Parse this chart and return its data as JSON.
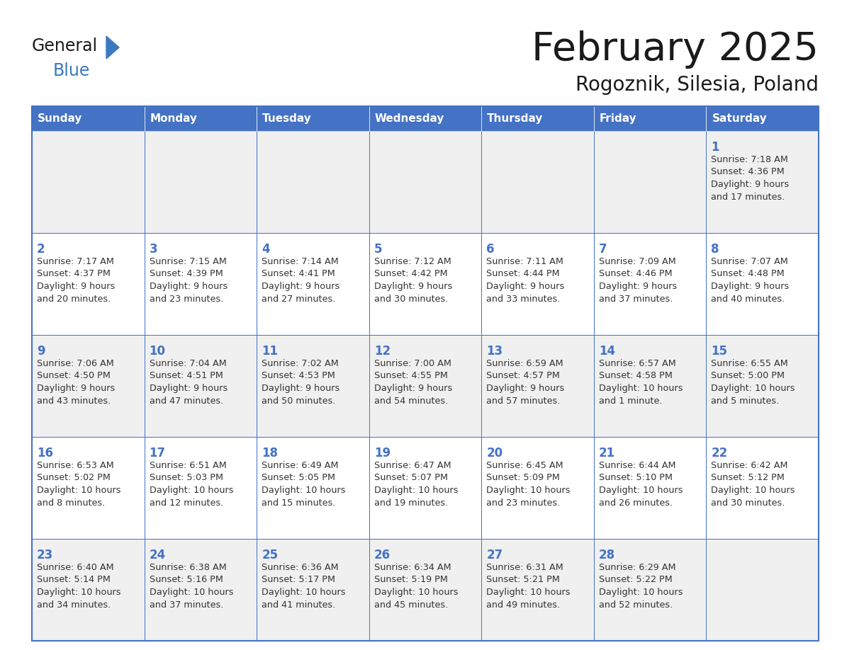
{
  "title": "February 2025",
  "subtitle": "Rogoznik, Silesia, Poland",
  "days_of_week": [
    "Sunday",
    "Monday",
    "Tuesday",
    "Wednesday",
    "Thursday",
    "Friday",
    "Saturday"
  ],
  "header_bg": "#4472C4",
  "header_text": "#FFFFFF",
  "cell_bg_even": "#F0F0F0",
  "cell_bg_odd": "#FFFFFF",
  "cell_border": "#4472C4",
  "title_color": "#1a1a1a",
  "subtitle_color": "#1a1a1a",
  "day_number_color": "#4472C4",
  "cell_text_color": "#333333",
  "logo_general_color": "#1a1a1a",
  "logo_blue_color": "#3a7abf",
  "calendar_data": {
    "1": {
      "sunrise": "7:18 AM",
      "sunset": "4:36 PM",
      "daylight_h": "9 hours",
      "daylight_m": "and 17 minutes."
    },
    "2": {
      "sunrise": "7:17 AM",
      "sunset": "4:37 PM",
      "daylight_h": "9 hours",
      "daylight_m": "and 20 minutes."
    },
    "3": {
      "sunrise": "7:15 AM",
      "sunset": "4:39 PM",
      "daylight_h": "9 hours",
      "daylight_m": "and 23 minutes."
    },
    "4": {
      "sunrise": "7:14 AM",
      "sunset": "4:41 PM",
      "daylight_h": "9 hours",
      "daylight_m": "and 27 minutes."
    },
    "5": {
      "sunrise": "7:12 AM",
      "sunset": "4:42 PM",
      "daylight_h": "9 hours",
      "daylight_m": "and 30 minutes."
    },
    "6": {
      "sunrise": "7:11 AM",
      "sunset": "4:44 PM",
      "daylight_h": "9 hours",
      "daylight_m": "and 33 minutes."
    },
    "7": {
      "sunrise": "7:09 AM",
      "sunset": "4:46 PM",
      "daylight_h": "9 hours",
      "daylight_m": "and 37 minutes."
    },
    "8": {
      "sunrise": "7:07 AM",
      "sunset": "4:48 PM",
      "daylight_h": "9 hours",
      "daylight_m": "and 40 minutes."
    },
    "9": {
      "sunrise": "7:06 AM",
      "sunset": "4:50 PM",
      "daylight_h": "9 hours",
      "daylight_m": "and 43 minutes."
    },
    "10": {
      "sunrise": "7:04 AM",
      "sunset": "4:51 PM",
      "daylight_h": "9 hours",
      "daylight_m": "and 47 minutes."
    },
    "11": {
      "sunrise": "7:02 AM",
      "sunset": "4:53 PM",
      "daylight_h": "9 hours",
      "daylight_m": "and 50 minutes."
    },
    "12": {
      "sunrise": "7:00 AM",
      "sunset": "4:55 PM",
      "daylight_h": "9 hours",
      "daylight_m": "and 54 minutes."
    },
    "13": {
      "sunrise": "6:59 AM",
      "sunset": "4:57 PM",
      "daylight_h": "9 hours",
      "daylight_m": "and 57 minutes."
    },
    "14": {
      "sunrise": "6:57 AM",
      "sunset": "4:58 PM",
      "daylight_h": "10 hours",
      "daylight_m": "and 1 minute."
    },
    "15": {
      "sunrise": "6:55 AM",
      "sunset": "5:00 PM",
      "daylight_h": "10 hours",
      "daylight_m": "and 5 minutes."
    },
    "16": {
      "sunrise": "6:53 AM",
      "sunset": "5:02 PM",
      "daylight_h": "10 hours",
      "daylight_m": "and 8 minutes."
    },
    "17": {
      "sunrise": "6:51 AM",
      "sunset": "5:03 PM",
      "daylight_h": "10 hours",
      "daylight_m": "and 12 minutes."
    },
    "18": {
      "sunrise": "6:49 AM",
      "sunset": "5:05 PM",
      "daylight_h": "10 hours",
      "daylight_m": "and 15 minutes."
    },
    "19": {
      "sunrise": "6:47 AM",
      "sunset": "5:07 PM",
      "daylight_h": "10 hours",
      "daylight_m": "and 19 minutes."
    },
    "20": {
      "sunrise": "6:45 AM",
      "sunset": "5:09 PM",
      "daylight_h": "10 hours",
      "daylight_m": "and 23 minutes."
    },
    "21": {
      "sunrise": "6:44 AM",
      "sunset": "5:10 PM",
      "daylight_h": "10 hours",
      "daylight_m": "and 26 minutes."
    },
    "22": {
      "sunrise": "6:42 AM",
      "sunset": "5:12 PM",
      "daylight_h": "10 hours",
      "daylight_m": "and 30 minutes."
    },
    "23": {
      "sunrise": "6:40 AM",
      "sunset": "5:14 PM",
      "daylight_h": "10 hours",
      "daylight_m": "and 34 minutes."
    },
    "24": {
      "sunrise": "6:38 AM",
      "sunset": "5:16 PM",
      "daylight_h": "10 hours",
      "daylight_m": "and 37 minutes."
    },
    "25": {
      "sunrise": "6:36 AM",
      "sunset": "5:17 PM",
      "daylight_h": "10 hours",
      "daylight_m": "and 41 minutes."
    },
    "26": {
      "sunrise": "6:34 AM",
      "sunset": "5:19 PM",
      "daylight_h": "10 hours",
      "daylight_m": "and 45 minutes."
    },
    "27": {
      "sunrise": "6:31 AM",
      "sunset": "5:21 PM",
      "daylight_h": "10 hours",
      "daylight_m": "and 49 minutes."
    },
    "28": {
      "sunrise": "6:29 AM",
      "sunset": "5:22 PM",
      "daylight_h": "10 hours",
      "daylight_m": "and 52 minutes."
    }
  },
  "week_layout": [
    [
      null,
      null,
      null,
      null,
      null,
      null,
      1
    ],
    [
      2,
      3,
      4,
      5,
      6,
      7,
      8
    ],
    [
      9,
      10,
      11,
      12,
      13,
      14,
      15
    ],
    [
      16,
      17,
      18,
      19,
      20,
      21,
      22
    ],
    [
      23,
      24,
      25,
      26,
      27,
      28,
      null
    ]
  ]
}
